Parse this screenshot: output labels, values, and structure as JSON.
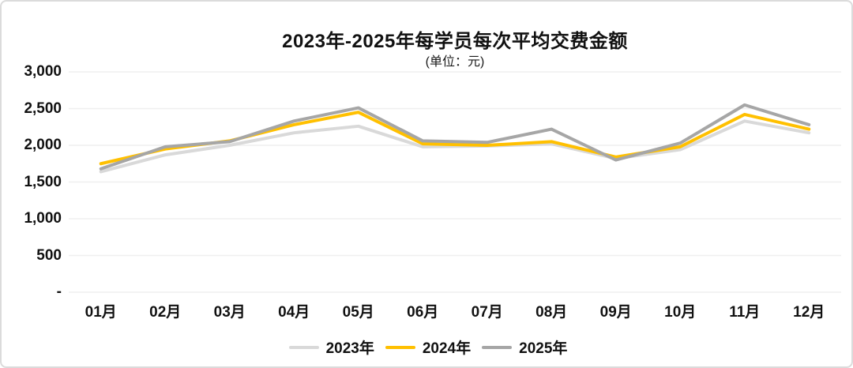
{
  "chart": {
    "title": "2023年-2025年每学员每次平均交费金额",
    "subtitle": "(单位：元)"
  },
  "chart_data": {
    "type": "line",
    "title": "2023年-2025年每学员每次平均交费金额",
    "subtitle": "(单位：元)",
    "categories": [
      "01月",
      "02月",
      "03月",
      "04月",
      "05月",
      "06月",
      "07月",
      "08月",
      "09月",
      "10月",
      "11月",
      "12月"
    ],
    "series": [
      {
        "name": "2023年",
        "color": "#D9D9D9",
        "values": [
          1640,
          1870,
          2000,
          2170,
          2260,
          1980,
          1990,
          2020,
          1820,
          1940,
          2330,
          2170
        ]
      },
      {
        "name": "2024年",
        "color": "#FFC000",
        "values": [
          1750,
          1950,
          2060,
          2280,
          2450,
          2020,
          2000,
          2050,
          1840,
          1980,
          2420,
          2220
        ]
      },
      {
        "name": "2025年",
        "color": "#A6A6A6",
        "values": [
          1680,
          1980,
          2050,
          2330,
          2510,
          2060,
          2040,
          2220,
          1800,
          2030,
          2550,
          2280
        ]
      }
    ],
    "y_axis": {
      "min": 0,
      "max": 3000,
      "ticks": [
        {
          "label": "3,000",
          "value": 3000
        },
        {
          "label": "2,500",
          "value": 2500
        },
        {
          "label": "2,000",
          "value": 2000
        },
        {
          "label": "1,500",
          "value": 1500
        },
        {
          "label": "1,000",
          "value": 1000
        },
        {
          "label": "500",
          "value": 500
        },
        {
          "label": "-",
          "value": 0
        }
      ]
    },
    "grid": true,
    "legend_position": "bottom"
  },
  "colors": {
    "background": "#FFFFFF",
    "border": "#DBDBDB",
    "gridline": "#EFEFEF",
    "text": "#111111"
  }
}
